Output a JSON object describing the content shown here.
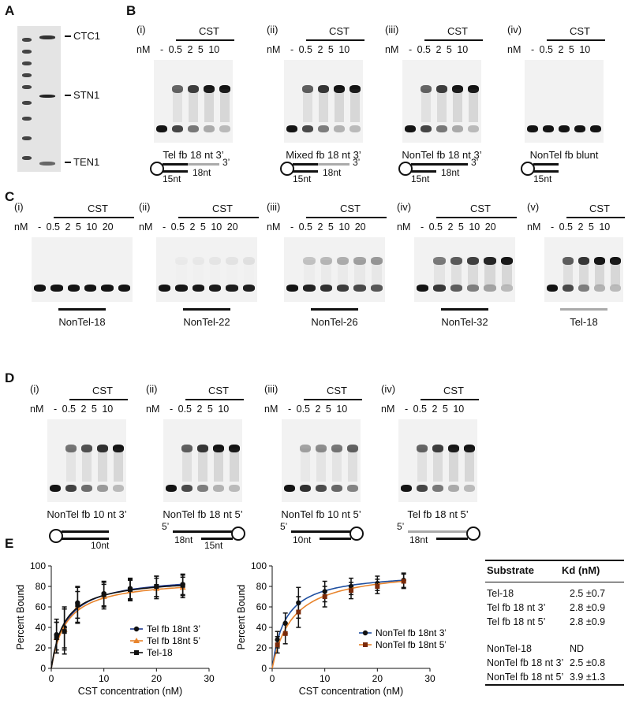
{
  "panelA": {
    "letter": "A",
    "labels": [
      "CTC1",
      "STN1",
      "TEN1"
    ]
  },
  "panelB": {
    "letter": "B",
    "cst": "CST",
    "nm": "nM",
    "lanes": "- 0.5  2  5  10",
    "gels": [
      {
        "roman": "(i)",
        "caption": "Tel fb 18 nt 3’",
        "d1": "15nt",
        "d2": "18nt",
        "end": "3’"
      },
      {
        "roman": "(ii)",
        "caption": "Mixed fb 18 nt 3’",
        "d1": "15nt",
        "d2": "18nt",
        "end": "3’"
      },
      {
        "roman": "(iii)",
        "caption": "NonTel fb 18 nt 3’",
        "d1": "15nt",
        "d2": "18nt",
        "end": "3’"
      },
      {
        "roman": "(iv)",
        "caption": "NonTel fb blunt",
        "d1": "15nt"
      }
    ]
  },
  "panelC": {
    "letter": "C",
    "cst": "CST",
    "nm": "nM",
    "lanes": "- 0.5  2  5  10  20",
    "lanes_v": "- 0.5  2  5  10",
    "gels": [
      {
        "roman": "(i)",
        "caption": "NonTel-18"
      },
      {
        "roman": "(ii)",
        "caption": "NonTel-22"
      },
      {
        "roman": "(iii)",
        "caption": "NonTel-26"
      },
      {
        "roman": "(iv)",
        "caption": "NonTel-32"
      },
      {
        "roman": "(v)",
        "caption": "Tel-18"
      }
    ]
  },
  "panelD": {
    "letter": "D",
    "cst": "CST",
    "nm": "nM",
    "lanes": "- 0.5  2  5  10",
    "gels": [
      {
        "roman": "(i)",
        "caption": "NonTel fb 10 nt 3’",
        "d1": "10nt"
      },
      {
        "roman": "(ii)",
        "caption": "NonTel fb 18 nt 5’",
        "d1": "18nt",
        "d2": "15nt",
        "end": "5’"
      },
      {
        "roman": "(iii)",
        "caption": "NonTel fb 10 nt 5’",
        "d1": "10nt",
        "end": "5’"
      },
      {
        "roman": "(iv)",
        "caption": "Tel fb 18 nt 5’",
        "d1": "18nt",
        "end": "5’"
      }
    ]
  },
  "panelE": {
    "letter": "E",
    "table": {
      "headers": [
        "Substrate",
        "Kd (nM)"
      ],
      "rows": [
        [
          "Tel-18",
          "2.5 ±0.7"
        ],
        [
          "Tel fb 18 nt 3’",
          "2.8 ±0.9"
        ],
        [
          "Tel fb 18 nt 5’",
          "2.8 ±0.9"
        ],
        [
          "NonTel-18",
          "ND"
        ],
        [
          "NonTel fb 18 nt 3’",
          "2.5 ±0.8"
        ],
        [
          "NonTel fb 18 nt 5’",
          "3.9 ±1.3"
        ]
      ]
    }
  },
  "chart_data": [
    {
      "type": "line",
      "xlabel": "CST concentration (nM)",
      "ylabel": "Percent Bound",
      "xlim": [
        0,
        30
      ],
      "ylim": [
        0,
        100
      ],
      "xticks": [
        0,
        10,
        20,
        30
      ],
      "yticks": [
        0,
        20,
        40,
        60,
        80,
        100
      ],
      "legend_position": "bottom-right",
      "series": [
        {
          "name": "Tel fb 18nt 3’",
          "color": "#1f3a93",
          "marker": "circle",
          "x": [
            1,
            2.5,
            5,
            10,
            15,
            20,
            25
          ],
          "y": [
            33,
            40,
            64,
            73,
            78,
            80,
            82
          ],
          "err": [
            15,
            20,
            15,
            12,
            10,
            10,
            10
          ],
          "kd": 2.8
        },
        {
          "name": "Tel fb 18nt 5’",
          "color": "#e8842c",
          "marker": "triangle",
          "x": [
            1,
            2.5,
            5,
            10,
            15,
            20,
            25
          ],
          "y": [
            30,
            38,
            60,
            70,
            76,
            78,
            79
          ],
          "err": [
            15,
            20,
            15,
            12,
            10,
            10,
            10
          ],
          "kd": 2.8
        },
        {
          "name": "Tel-18",
          "color": "#111111",
          "marker": "square",
          "x": [
            1,
            2.5,
            5,
            10,
            15,
            20,
            25
          ],
          "y": [
            30,
            36,
            62,
            72,
            77,
            80,
            81
          ],
          "err": [
            15,
            22,
            18,
            12,
            10,
            10,
            10
          ],
          "kd": 2.5
        }
      ]
    },
    {
      "type": "line",
      "xlabel": "CST concentration (nM)",
      "ylabel": "Percent Bound",
      "xlim": [
        0,
        30
      ],
      "ylim": [
        0,
        100
      ],
      "xticks": [
        0,
        10,
        20,
        30
      ],
      "yticks": [
        0,
        20,
        40,
        60,
        80,
        100
      ],
      "legend_position": "bottom-right",
      "series": [
        {
          "name": "NonTel fb 18nt 3’",
          "color": "#1f4fa0",
          "marker": "circle",
          "x": [
            1,
            2.5,
            5,
            10,
            15,
            20,
            25
          ],
          "y": [
            28,
            44,
            64,
            75,
            80,
            83,
            86
          ],
          "err": [
            8,
            10,
            15,
            10,
            8,
            7,
            7
          ],
          "kd": 2.5
        },
        {
          "name": "NonTel fb 18nt 5’",
          "color": "#e8842c",
          "marker": "square",
          "x": [
            1,
            2.5,
            5,
            10,
            15,
            20,
            25
          ],
          "y": [
            23,
            34,
            55,
            70,
            76,
            80,
            85
          ],
          "err": [
            8,
            10,
            15,
            10,
            8,
            7,
            7
          ],
          "kd": 3.9
        }
      ]
    }
  ]
}
